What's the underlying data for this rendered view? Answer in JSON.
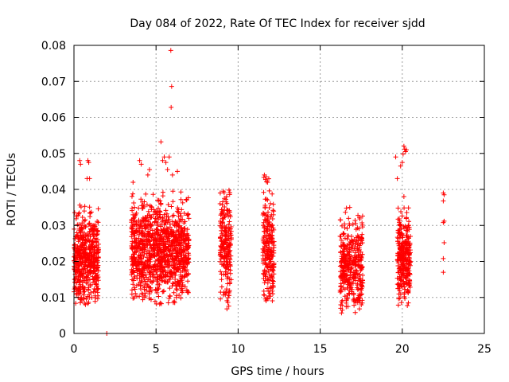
{
  "chart_data": {
    "type": "scatter",
    "title": "Day 084 of 2022, Rate Of TEC Index for receiver sjdd",
    "xlabel": "GPS time / hours",
    "ylabel": "ROTI / TECUs",
    "xlim": [
      0,
      25
    ],
    "ylim": [
      0,
      0.08
    ],
    "x_ticks": [
      "0",
      "5",
      "10",
      "15",
      "20",
      "25"
    ],
    "y_ticks": [
      "0",
      "0.01",
      "0.02",
      "0.03",
      "0.04",
      "0.05",
      "0.06",
      "0.07",
      "0.08"
    ],
    "grid": true,
    "marker": "plus",
    "color": "#ff0000",
    "clusters": [
      {
        "x_range": [
          0.0,
          1.5
        ],
        "y_range": [
          0.008,
          0.038
        ],
        "y_center": 0.021,
        "count": 520
      },
      {
        "x_range": [
          3.5,
          7.0
        ],
        "y_range": [
          0.008,
          0.04
        ],
        "y_center": 0.023,
        "count": 1100
      },
      {
        "x_range": [
          8.9,
          9.6
        ],
        "y_range": [
          0.006,
          0.04
        ],
        "y_center": 0.024,
        "count": 220
      },
      {
        "x_range": [
          11.5,
          12.2
        ],
        "y_range": [
          0.009,
          0.044
        ],
        "y_center": 0.024,
        "count": 230
      },
      {
        "x_range": [
          16.2,
          17.6
        ],
        "y_range": [
          0.005,
          0.035
        ],
        "y_center": 0.019,
        "count": 380
      },
      {
        "x_range": [
          19.7,
          20.5
        ],
        "y_range": [
          0.007,
          0.035
        ],
        "y_center": 0.021,
        "count": 300
      }
    ],
    "points": [
      [
        0.35,
        0.048
      ],
      [
        0.4,
        0.047
      ],
      [
        0.85,
        0.048
      ],
      [
        0.9,
        0.0475
      ],
      [
        0.8,
        0.043
      ],
      [
        0.95,
        0.043
      ],
      [
        2.0,
        0.0
      ],
      [
        4.0,
        0.048
      ],
      [
        4.1,
        0.047
      ],
      [
        4.6,
        0.0455
      ],
      [
        4.5,
        0.044
      ],
      [
        3.6,
        0.042
      ],
      [
        5.3,
        0.0532
      ],
      [
        5.5,
        0.049
      ],
      [
        5.4,
        0.048
      ],
      [
        5.6,
        0.0475
      ],
      [
        5.8,
        0.049
      ],
      [
        5.7,
        0.0455
      ],
      [
        6.3,
        0.045
      ],
      [
        6.0,
        0.044
      ],
      [
        5.9,
        0.0786
      ],
      [
        5.95,
        0.0686
      ],
      [
        5.92,
        0.0628
      ],
      [
        9.1,
        0.0395
      ],
      [
        9.3,
        0.038
      ],
      [
        11.6,
        0.044
      ],
      [
        11.7,
        0.0435
      ],
      [
        11.8,
        0.042
      ],
      [
        16.6,
        0.0348
      ],
      [
        16.8,
        0.035
      ],
      [
        17.3,
        0.0328
      ],
      [
        17.4,
        0.0322
      ],
      [
        19.7,
        0.043
      ],
      [
        19.9,
        0.0465
      ],
      [
        20.0,
        0.0475
      ],
      [
        20.1,
        0.052
      ],
      [
        20.15,
        0.0512
      ],
      [
        20.2,
        0.0505
      ],
      [
        20.05,
        0.0498
      ],
      [
        20.25,
        0.051
      ],
      [
        20.1,
        0.038
      ],
      [
        19.6,
        0.049
      ],
      [
        22.5,
        0.039
      ],
      [
        22.55,
        0.0385
      ],
      [
        22.5,
        0.0368
      ],
      [
        22.55,
        0.0312
      ],
      [
        22.5,
        0.0308
      ],
      [
        22.55,
        0.0252
      ],
      [
        22.5,
        0.0208
      ],
      [
        22.5,
        0.017
      ]
    ]
  }
}
